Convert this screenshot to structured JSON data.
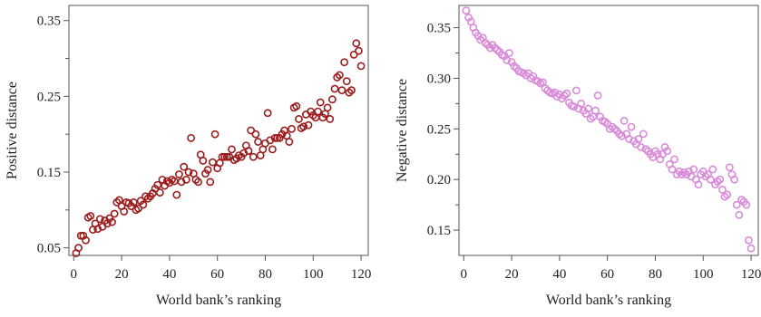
{
  "chart_data": [
    {
      "type": "scatter",
      "xlabel": "World bank’s ranking",
      "ylabel": "Positive distance",
      "xlim": [
        -2,
        123
      ],
      "ylim": [
        0.04,
        0.37
      ],
      "xticks": [
        0,
        20,
        40,
        60,
        80,
        100,
        120
      ],
      "xtick_labels": [
        "0",
        "20",
        "40",
        "60",
        "80",
        "100",
        "120"
      ],
      "yticks": [
        0.05,
        0.15,
        0.25,
        0.35
      ],
      "ytick_labels": [
        "0.05",
        "0.15",
        "0.25",
        "0.35"
      ],
      "marker_color": "#9b1c1c",
      "x": [
        1,
        2,
        3,
        4,
        5,
        6,
        7,
        8,
        9,
        10,
        11,
        12,
        13,
        14,
        15,
        16,
        17,
        18,
        19,
        20,
        21,
        22,
        23,
        24,
        25,
        26,
        27,
        28,
        29,
        30,
        31,
        32,
        33,
        34,
        35,
        36,
        37,
        38,
        39,
        40,
        41,
        42,
        43,
        44,
        45,
        46,
        47,
        48,
        49,
        50,
        51,
        52,
        53,
        54,
        55,
        56,
        57,
        58,
        59,
        60,
        61,
        62,
        63,
        64,
        65,
        66,
        67,
        68,
        69,
        70,
        71,
        72,
        73,
        74,
        75,
        76,
        77,
        78,
        79,
        80,
        81,
        82,
        83,
        84,
        85,
        86,
        87,
        88,
        89,
        90,
        91,
        92,
        93,
        94,
        95,
        96,
        97,
        98,
        99,
        100,
        101,
        102,
        103,
        104,
        105,
        106,
        107,
        108,
        109,
        110,
        111,
        112,
        113,
        114,
        115,
        116,
        117,
        118,
        119,
        120
      ],
      "y": [
        0.043,
        0.05,
        0.066,
        0.066,
        0.06,
        0.09,
        0.092,
        0.074,
        0.082,
        0.075,
        0.088,
        0.078,
        0.086,
        0.082,
        0.089,
        0.084,
        0.095,
        0.11,
        0.113,
        0.105,
        0.098,
        0.11,
        0.109,
        0.105,
        0.11,
        0.1,
        0.102,
        0.112,
        0.107,
        0.118,
        0.115,
        0.118,
        0.122,
        0.128,
        0.133,
        0.123,
        0.14,
        0.132,
        0.138,
        0.136,
        0.14,
        0.138,
        0.12,
        0.147,
        0.137,
        0.157,
        0.14,
        0.15,
        0.195,
        0.148,
        0.14,
        0.137,
        0.173,
        0.165,
        0.148,
        0.153,
        0.137,
        0.163,
        0.2,
        0.155,
        0.162,
        0.17,
        0.17,
        0.17,
        0.17,
        0.18,
        0.166,
        0.168,
        0.172,
        0.17,
        0.175,
        0.185,
        0.178,
        0.205,
        0.17,
        0.2,
        0.19,
        0.172,
        0.18,
        0.188,
        0.228,
        0.192,
        0.18,
        0.195,
        0.195,
        0.195,
        0.2,
        0.205,
        0.198,
        0.19,
        0.207,
        0.235,
        0.237,
        0.22,
        0.208,
        0.21,
        0.226,
        0.212,
        0.23,
        0.225,
        0.222,
        0.23,
        0.242,
        0.222,
        0.227,
        0.235,
        0.22,
        0.246,
        0.26,
        0.275,
        0.278,
        0.258,
        0.295,
        0.27,
        0.255,
        0.258,
        0.305,
        0.32,
        0.31,
        0.29
      ]
    },
    {
      "type": "scatter",
      "xlabel": "World bank’s ranking",
      "ylabel": "Negative distance",
      "xlim": [
        -2,
        123
      ],
      "ylim": [
        0.125,
        0.372
      ],
      "xticks": [
        0,
        20,
        40,
        60,
        80,
        100,
        120
      ],
      "xtick_labels": [
        "0",
        "20",
        "40",
        "60",
        "80",
        "100",
        "120"
      ],
      "yticks": [
        0.15,
        0.2,
        0.25,
        0.3,
        0.35
      ],
      "ytick_labels": [
        "0.15",
        "0.20",
        "0.25",
        "0.30",
        "0.35"
      ],
      "marker_color": "#d98bd9",
      "x": [
        1,
        2,
        3,
        4,
        5,
        6,
        7,
        8,
        9,
        10,
        11,
        12,
        13,
        14,
        15,
        16,
        17,
        18,
        19,
        20,
        21,
        22,
        23,
        24,
        25,
        26,
        27,
        28,
        29,
        30,
        31,
        32,
        33,
        34,
        35,
        36,
        37,
        38,
        39,
        40,
        41,
        42,
        43,
        44,
        45,
        46,
        47,
        48,
        49,
        50,
        51,
        52,
        53,
        54,
        55,
        56,
        57,
        58,
        59,
        60,
        61,
        62,
        63,
        64,
        65,
        66,
        67,
        68,
        69,
        70,
        71,
        72,
        73,
        74,
        75,
        76,
        77,
        78,
        79,
        80,
        81,
        82,
        83,
        84,
        85,
        86,
        87,
        88,
        89,
        90,
        91,
        92,
        93,
        94,
        95,
        96,
        97,
        98,
        99,
        100,
        101,
        102,
        103,
        104,
        105,
        106,
        107,
        108,
        109,
        110,
        111,
        112,
        113,
        114,
        115,
        116,
        117,
        118,
        119,
        120
      ],
      "y": [
        0.367,
        0.36,
        0.356,
        0.35,
        0.345,
        0.342,
        0.338,
        0.34,
        0.335,
        0.333,
        0.33,
        0.333,
        0.33,
        0.328,
        0.326,
        0.323,
        0.322,
        0.318,
        0.325,
        0.316,
        0.312,
        0.31,
        0.307,
        0.306,
        0.305,
        0.303,
        0.305,
        0.3,
        0.302,
        0.298,
        0.297,
        0.295,
        0.296,
        0.29,
        0.288,
        0.286,
        0.285,
        0.286,
        0.282,
        0.284,
        0.28,
        0.283,
        0.285,
        0.276,
        0.273,
        0.272,
        0.288,
        0.27,
        0.275,
        0.268,
        0.265,
        0.27,
        0.26,
        0.262,
        0.268,
        0.283,
        0.262,
        0.258,
        0.257,
        0.255,
        0.25,
        0.252,
        0.25,
        0.248,
        0.245,
        0.243,
        0.258,
        0.245,
        0.24,
        0.252,
        0.238,
        0.235,
        0.24,
        0.232,
        0.245,
        0.23,
        0.228,
        0.225,
        0.222,
        0.228,
        0.225,
        0.22,
        0.225,
        0.232,
        0.228,
        0.215,
        0.21,
        0.22,
        0.205,
        0.208,
        0.205,
        0.207,
        0.205,
        0.208,
        0.203,
        0.21,
        0.2,
        0.195,
        0.205,
        0.208,
        0.203,
        0.205,
        0.2,
        0.21,
        0.195,
        0.198,
        0.2,
        0.19,
        0.183,
        0.185,
        0.212,
        0.205,
        0.2,
        0.175,
        0.165,
        0.18,
        0.178,
        0.175,
        0.14,
        0.132
      ]
    }
  ]
}
